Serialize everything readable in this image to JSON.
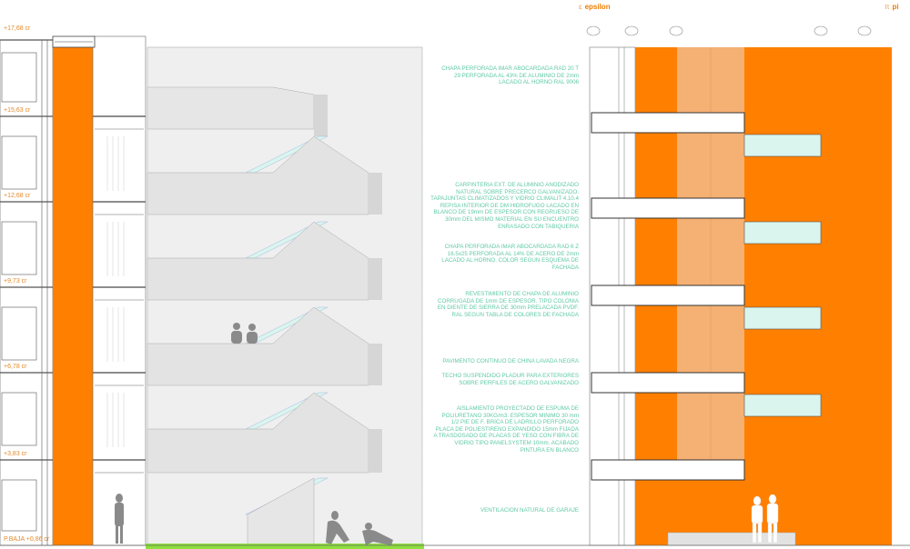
{
  "colors": {
    "orange": "#ff7f00",
    "light_orange": "#f5b073",
    "teal_note": "#5fc9a6",
    "glass": "#d9f5ee",
    "grass": "#8ee03c"
  },
  "levels": [
    {
      "label": "+17,68 cr"
    },
    {
      "label": "+15,63 cr"
    },
    {
      "label": "+12,68 cr"
    },
    {
      "label": "+9,73 cr"
    },
    {
      "label": "+6,78 cr"
    },
    {
      "label": "+3,83 cr"
    },
    {
      "label": "P.BAJA +0,86 cr"
    }
  ],
  "notes": [
    {
      "text": "CHAPA PERFORADA IMAR ABOCARDADA RAD 20 T\n29 PERFORADA AL 43% DE ALUMINIO DE 2mm\nLACADO AL HORNO RAL 9006"
    },
    {
      "text": "CARPINTERIA EXT. DE ALUMINIO ANODIZADO\nNATURAL SOBRE PRECERCO GALVANIZADO.\nTAPAJUNTAS CLIMATIZADOS Y VIDRIO CLIMALIT 4.10.4\nREPISA INTERIOR DE DM HIDROFUGO LACADO EN\nBLANCO DE 19mm DE ESPESOR CON REGRUESO DE\n30mm DEL MISMO MATERIAL EN SU ENCUENTRO\nENRASADO CON TABIQUERIA"
    },
    {
      "text": "CHAPA PERFORADA IMAR ABOCARDADA RAD 6 Z\n16.5x25 PERFORADA AL 14% DE ACERO DE 2mm\nLACADO AL HORNO. COLOR SEGUN ESQUEMA DE\nFACHADA"
    },
    {
      "text": "REVESTIMIENTO DE CHAPA DE ALUMINIO\nCORRUGADA DE 1mm DE ESPESOR. TIPO COLONIA\nEN DIENTE DE SIERRA DE 30mm PRELACADA PVDF.\nRAL SEGUN TABLA DE COLORES DE FACHADA"
    },
    {
      "text": "PAVIMENTO CONTINUO DE CHINA LAVADA NEGRA"
    },
    {
      "text": "TECHO SUSPENDIDO PLADUR PARA EXTERIORES\nSOBRE PERFILES DE ACERO GALVANIZADO"
    },
    {
      "text": "AISLAMIENTO PROYECTADO DE ESPUMA DE\nPOLIURETANO 30KG/m3. ESPESOR MINIMO 30 mm\n1/2 PIE DE F. BRICA DE LADRILLO PERFORADO\nPLACA DE POLIESTIRENO EXPANDIDO 15mm FIJADA\nA TRASDOSADO DE PLACAS DE YESO CON FIBRA DE\nVIDRIO TIPO PANELSYSTEM 10mm. ACABADO\nPINTURA EN BLANCO"
    },
    {
      "text": "VENTILACION NATURAL DE GARAJE"
    }
  ],
  "headers": {
    "epsilon": {
      "symbol": "ε",
      "label": "epsilon"
    },
    "pi": {
      "symbol": "π",
      "label": "pi"
    }
  }
}
